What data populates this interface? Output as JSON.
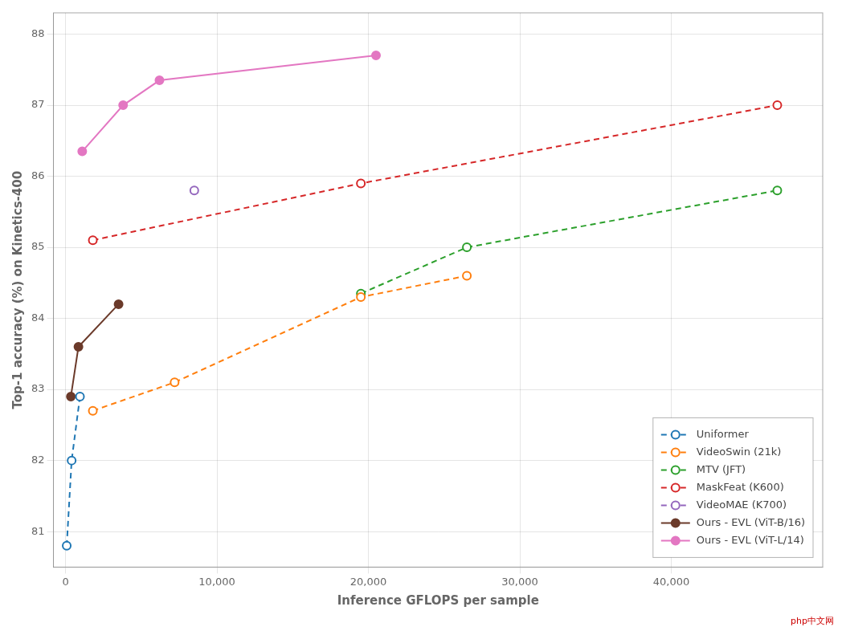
{
  "chart_data": {
    "type": "line",
    "xlabel": "Inference GFLOPS per sample",
    "ylabel": "Top-1 accuracy (%) on Kinetics-400",
    "series": [
      {
        "name": "Uniformer",
        "color": "#1f77b4",
        "line_style": "dashed",
        "marker": "open_circle",
        "x": [
          75,
          400,
          950
        ],
        "values": [
          80.8,
          82.0,
          82.9
        ]
      },
      {
        "name": "VideoSwin (21k)",
        "color": "#ff7f0e",
        "line_style": "dashed",
        "marker": "open_circle",
        "x": [
          1800,
          7200,
          19500,
          26500
        ],
        "values": [
          82.7,
          83.1,
          84.3,
          84.6
        ]
      },
      {
        "name": "MTV (JFT)",
        "color": "#2ca02c",
        "line_style": "dashed",
        "marker": "open_circle",
        "x": [
          19500,
          26500,
          47000
        ],
        "values": [
          84.35,
          85.0,
          85.8
        ]
      },
      {
        "name": "MaskFeat (K600)",
        "color": "#d62728",
        "line_style": "dashed",
        "marker": "open_circle",
        "x": [
          1800,
          19500,
          47000
        ],
        "values": [
          85.1,
          85.9,
          87.0
        ]
      },
      {
        "name": "VideoMAE (K700)",
        "color": "#9467bd",
        "line_style": "dashed",
        "marker": "open_circle",
        "x": [
          8500
        ],
        "values": [
          85.8
        ]
      },
      {
        "name": "Ours - EVL (ViT-B/16)",
        "color": "#6b3a2a",
        "line_style": "solid",
        "marker": "circle",
        "x": [
          350,
          850,
          3500
        ],
        "values": [
          82.9,
          83.6,
          84.2
        ]
      },
      {
        "name": "Ours - EVL (ViT-L/14)",
        "color": "#e377c2",
        "line_style": "solid",
        "marker": "circle",
        "x": [
          1100,
          3800,
          6200,
          20500
        ],
        "values": [
          86.35,
          87.0,
          87.35,
          87.7
        ]
      }
    ],
    "xlim": [
      -800,
      50000
    ],
    "ylim": [
      80.5,
      88.3
    ],
    "xticks": [
      0,
      {
        "value": 10000,
        "label": "10,000"
      },
      {
        "value": 20000,
        "label": "20,000"
      },
      {
        "value": 30000,
        "label": "30,000"
      },
      {
        "value": 40000,
        "label": "40,000"
      }
    ],
    "yticks": [
      81,
      82,
      83,
      84,
      85,
      86,
      87,
      88
    ],
    "grid": true,
    "legend": "lower right",
    "annotations": [
      {
        "text": "php中文网",
        "color": "#cc0000"
      }
    ]
  }
}
